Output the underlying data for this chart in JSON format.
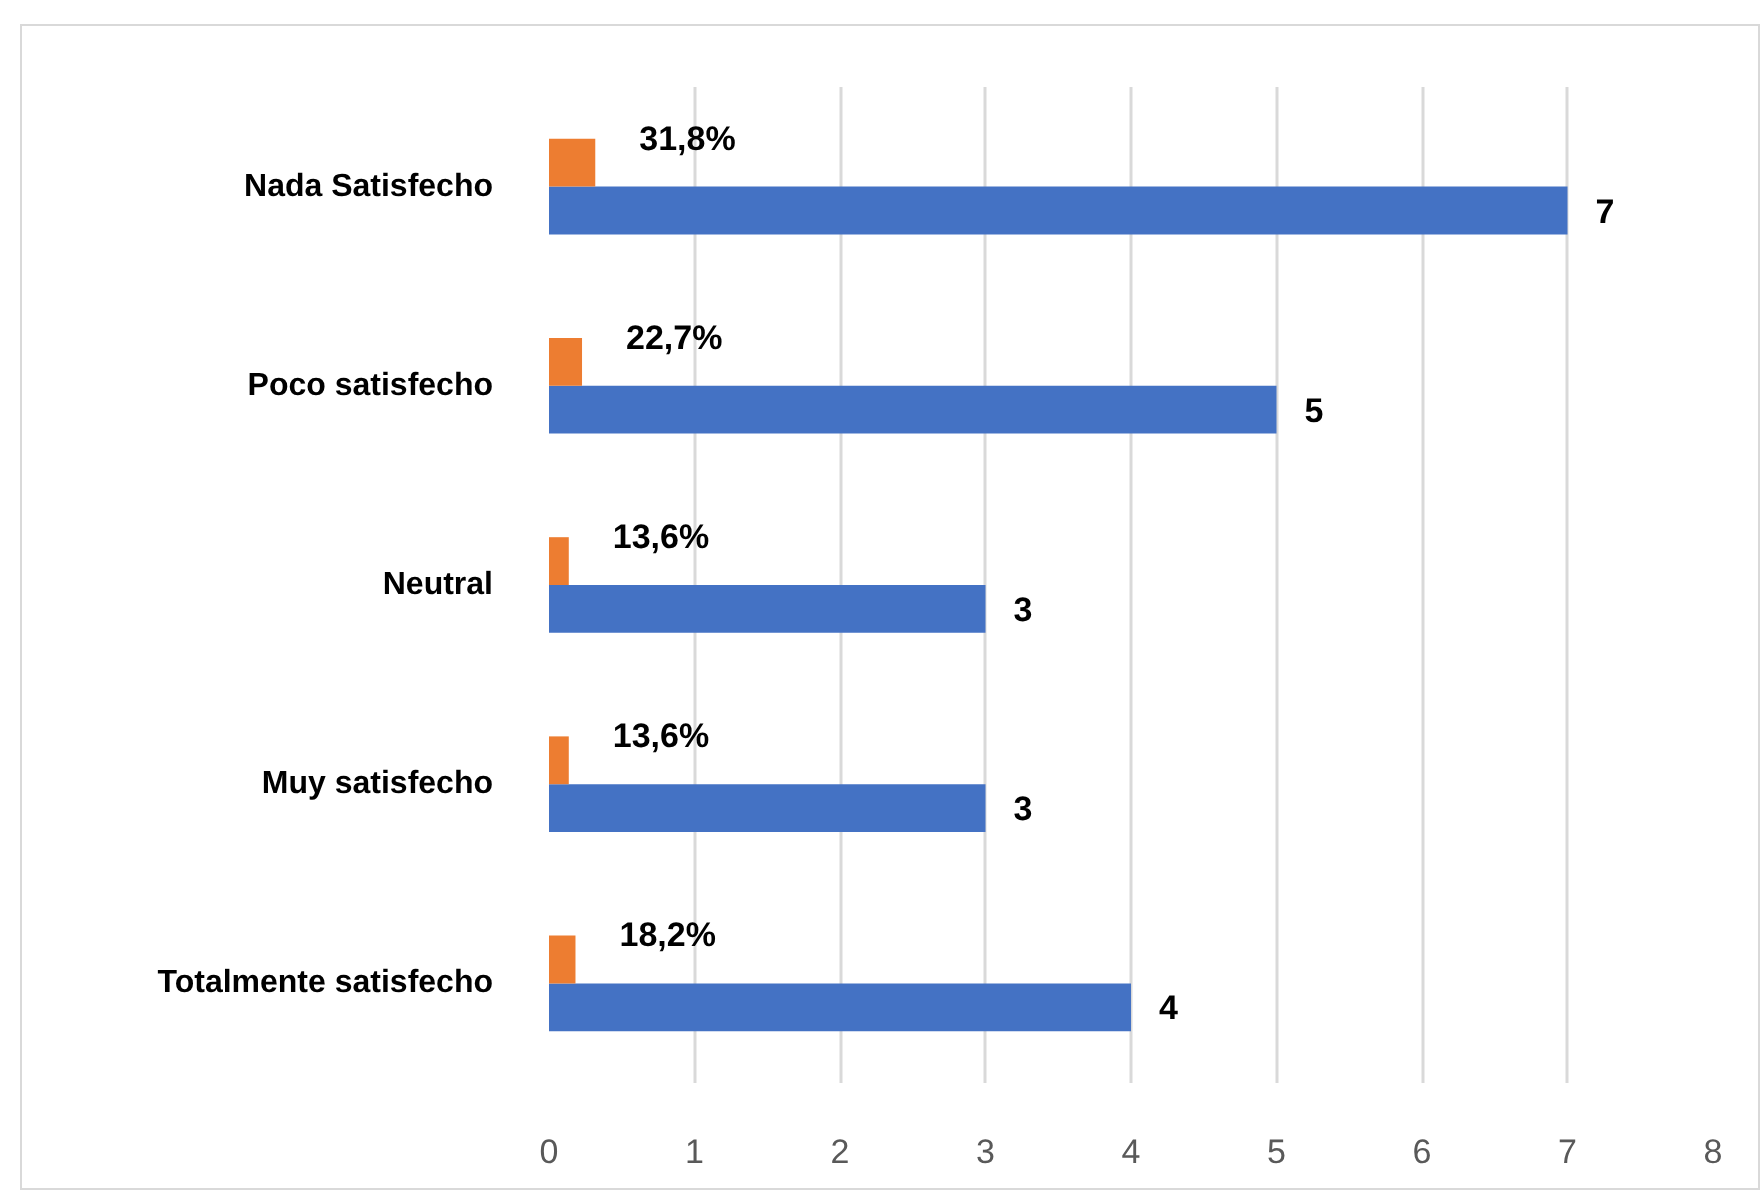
{
  "chart_data": {
    "type": "bar",
    "orientation": "horizontal",
    "categories": [
      "Nada Satisfecho",
      "Poco satisfecho",
      "Neutral",
      "Muy satisfecho",
      "Totalmente satisfecho"
    ],
    "series": [
      {
        "color": "#4472c4",
        "values": [
          7,
          5,
          3,
          3,
          4
        ],
        "value_labels": [
          "7",
          "5",
          "3",
          "3",
          "4"
        ]
      },
      {
        "color": "#ed7d31",
        "values": [
          0.318,
          0.227,
          0.136,
          0.136,
          0.182
        ],
        "value_labels": [
          "31,8%",
          "22,7%",
          "13,6%",
          "13,6%",
          "18,2%"
        ]
      }
    ],
    "xlim": [
      0,
      8
    ],
    "xticks": [
      0,
      1,
      2,
      3,
      4,
      5,
      6,
      7,
      8
    ],
    "grid": "x"
  }
}
